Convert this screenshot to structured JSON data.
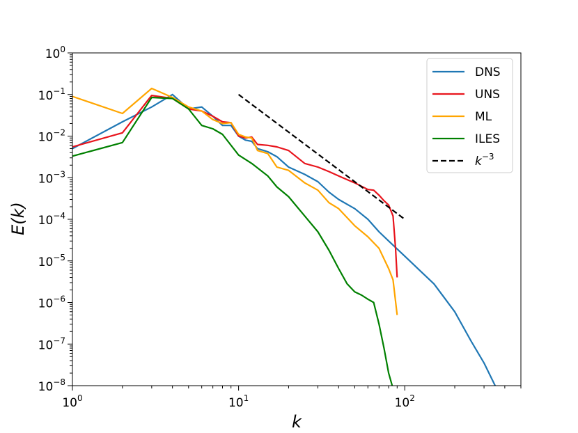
{
  "chart_data": {
    "type": "line",
    "xscale": "log",
    "yscale": "log",
    "xlim": [
      1,
      500
    ],
    "ylim": [
      1e-08,
      1
    ],
    "xlabel": "k",
    "ylabel": "E(k)",
    "x_ticks": [
      {
        "value": 1,
        "base": "10",
        "exp": "0"
      },
      {
        "value": 10,
        "base": "10",
        "exp": "1"
      },
      {
        "value": 100,
        "base": "10",
        "exp": "2"
      }
    ],
    "y_ticks": [
      {
        "value": 1,
        "base": "10",
        "exp": "0"
      },
      {
        "value": 0.1,
        "base": "10",
        "exp": "−1"
      },
      {
        "value": 0.01,
        "base": "10",
        "exp": "−2"
      },
      {
        "value": 0.001,
        "base": "10",
        "exp": "−3"
      },
      {
        "value": 0.0001,
        "base": "10",
        "exp": "−4"
      },
      {
        "value": 1e-05,
        "base": "10",
        "exp": "−5"
      },
      {
        "value": 1e-06,
        "base": "10",
        "exp": "−6"
      },
      {
        "value": 1e-07,
        "base": "10",
        "exp": "−7"
      },
      {
        "value": 1e-08,
        "base": "10",
        "exp": "−8"
      }
    ],
    "legend_position": "top-right",
    "series": [
      {
        "name": "DNS",
        "color": "#1f77b4",
        "dash": "solid",
        "points": [
          [
            1,
            0.005
          ],
          [
            2,
            0.022
          ],
          [
            3,
            0.05
          ],
          [
            4,
            0.1
          ],
          [
            5,
            0.045
          ],
          [
            6,
            0.05
          ],
          [
            7,
            0.03
          ],
          [
            8,
            0.018
          ],
          [
            9,
            0.018
          ],
          [
            10,
            0.01
          ],
          [
            11,
            0.008
          ],
          [
            12,
            0.0075
          ],
          [
            13,
            0.005
          ],
          [
            15,
            0.0042
          ],
          [
            17,
            0.0032
          ],
          [
            20,
            0.0018
          ],
          [
            25,
            0.0012
          ],
          [
            30,
            0.0008
          ],
          [
            35,
            0.00045
          ],
          [
            40,
            0.0003
          ],
          [
            50,
            0.00018
          ],
          [
            60,
            0.0001
          ],
          [
            70,
            5e-05
          ],
          [
            80,
            3e-05
          ],
          [
            100,
            1.3e-05
          ],
          [
            120,
            6.5e-06
          ],
          [
            150,
            2.8e-06
          ],
          [
            200,
            6e-07
          ],
          [
            250,
            1.2e-07
          ],
          [
            300,
            3.5e-08
          ],
          [
            350,
            1e-08
          ]
        ]
      },
      {
        "name": "UNS",
        "color": "#e8141c",
        "dash": "solid",
        "points": [
          [
            1,
            0.0055
          ],
          [
            2,
            0.012
          ],
          [
            3,
            0.095
          ],
          [
            4,
            0.08
          ],
          [
            5,
            0.045
          ],
          [
            6,
            0.04
          ],
          [
            7,
            0.03
          ],
          [
            8,
            0.022
          ],
          [
            9,
            0.021
          ],
          [
            10,
            0.01
          ],
          [
            11,
            0.009
          ],
          [
            12,
            0.0095
          ],
          [
            13,
            0.0063
          ],
          [
            15,
            0.006
          ],
          [
            17,
            0.0055
          ],
          [
            20,
            0.0045
          ],
          [
            25,
            0.0022
          ],
          [
            30,
            0.0018
          ],
          [
            35,
            0.0014
          ],
          [
            40,
            0.0011
          ],
          [
            50,
            0.00075
          ],
          [
            60,
            0.00052
          ],
          [
            65,
            0.0005
          ],
          [
            70,
            0.00038
          ],
          [
            75,
            0.00028
          ],
          [
            80,
            0.00022
          ],
          [
            85,
            0.00012
          ],
          [
            88,
            2e-05
          ],
          [
            90,
            4e-06
          ]
        ]
      },
      {
        "name": "ML",
        "color": "#ffa500",
        "dash": "solid",
        "points": [
          [
            1,
            0.09
          ],
          [
            2,
            0.035
          ],
          [
            3,
            0.14
          ],
          [
            4,
            0.085
          ],
          [
            5,
            0.05
          ],
          [
            6,
            0.04
          ],
          [
            7,
            0.025
          ],
          [
            8,
            0.02
          ],
          [
            9,
            0.021
          ],
          [
            10,
            0.011
          ],
          [
            11,
            0.0095
          ],
          [
            12,
            0.009
          ],
          [
            13,
            0.0045
          ],
          [
            15,
            0.0038
          ],
          [
            17,
            0.0018
          ],
          [
            20,
            0.0015
          ],
          [
            25,
            0.00075
          ],
          [
            30,
            0.0005
          ],
          [
            35,
            0.00025
          ],
          [
            40,
            0.00018
          ],
          [
            50,
            7e-05
          ],
          [
            60,
            3.8e-05
          ],
          [
            70,
            2e-05
          ],
          [
            80,
            6.5e-06
          ],
          [
            85,
            3.5e-06
          ],
          [
            90,
            5e-07
          ]
        ]
      },
      {
        "name": "ILES",
        "color": "#008000",
        "dash": "solid",
        "points": [
          [
            1,
            0.0033
          ],
          [
            2,
            0.007
          ],
          [
            3,
            0.085
          ],
          [
            4,
            0.08
          ],
          [
            5,
            0.045
          ],
          [
            6,
            0.018
          ],
          [
            7,
            0.015
          ],
          [
            8,
            0.011
          ],
          [
            10,
            0.0035
          ],
          [
            12,
            0.0022
          ],
          [
            15,
            0.0011
          ],
          [
            17,
            0.0006
          ],
          [
            20,
            0.00035
          ],
          [
            25,
            0.00012
          ],
          [
            30,
            5e-05
          ],
          [
            35,
            1.8e-05
          ],
          [
            40,
            6.5e-06
          ],
          [
            45,
            2.8e-06
          ],
          [
            50,
            1.8e-06
          ],
          [
            55,
            1.5e-06
          ],
          [
            60,
            1.2e-06
          ],
          [
            65,
            1e-06
          ],
          [
            70,
            3e-07
          ],
          [
            75,
            8e-08
          ],
          [
            80,
            2e-08
          ],
          [
            84,
            1e-08
          ]
        ]
      },
      {
        "name": "k^{-3}",
        "label_base": "k",
        "label_exp": "−3",
        "color": "#000000",
        "dash": "dashed",
        "points": [
          [
            10,
            0.1
          ],
          [
            100,
            0.0001
          ]
        ]
      }
    ]
  }
}
